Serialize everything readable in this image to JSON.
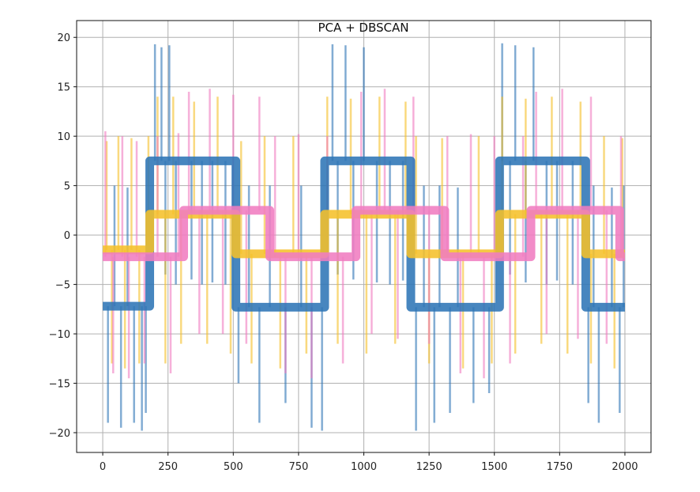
{
  "chart_data": {
    "type": "line",
    "title": "PCA + DBSCAN",
    "xlabel": "",
    "ylabel": "",
    "xlim": [
      -100,
      2100
    ],
    "ylim": [
      -22,
      21.7
    ],
    "xticks": [
      0,
      250,
      500,
      750,
      1000,
      1250,
      1500,
      1750,
      2000
    ],
    "yticks": [
      -20,
      -15,
      -10,
      -5,
      0,
      5,
      10,
      15,
      20
    ],
    "grid": true,
    "series": [
      {
        "color": "#2e75b6",
        "steps": [
          [
            0,
            -7.2
          ],
          [
            180,
            7.5
          ],
          [
            510,
            -7.3
          ],
          [
            850,
            7.5
          ],
          [
            1180,
            -7.3
          ],
          [
            1520,
            7.5
          ],
          [
            1850,
            -7.3
          ],
          [
            2000,
            -7.3
          ]
        ],
        "spikes": [
          [
            20,
            -19
          ],
          [
            45,
            5
          ],
          [
            70,
            -19.5
          ],
          [
            95,
            4.8
          ],
          [
            120,
            -19
          ],
          [
            150,
            -19.8
          ],
          [
            165,
            -18
          ],
          [
            200,
            19.3
          ],
          [
            225,
            19
          ],
          [
            240,
            -4
          ],
          [
            255,
            19.2
          ],
          [
            280,
            -5
          ],
          [
            340,
            -4.5
          ],
          [
            380,
            -5
          ],
          [
            420,
            -4.8
          ],
          [
            470,
            -5
          ],
          [
            520,
            -15
          ],
          [
            560,
            5
          ],
          [
            600,
            -19
          ],
          [
            640,
            5
          ],
          [
            700,
            -17
          ],
          [
            760,
            5
          ],
          [
            800,
            -19.5
          ],
          [
            840,
            -19.8
          ],
          [
            880,
            19.3
          ],
          [
            900,
            -4
          ],
          [
            930,
            19.2
          ],
          [
            960,
            -4.5
          ],
          [
            1000,
            19
          ],
          [
            1050,
            -4.8
          ],
          [
            1100,
            -5
          ],
          [
            1150,
            -4.6
          ],
          [
            1200,
            -19.8
          ],
          [
            1230,
            5
          ],
          [
            1270,
            -19
          ],
          [
            1290,
            5
          ],
          [
            1330,
            -18
          ],
          [
            1360,
            4.8
          ],
          [
            1420,
            -17
          ],
          [
            1480,
            -16
          ],
          [
            1530,
            19.4
          ],
          [
            1560,
            -4
          ],
          [
            1580,
            19.2
          ],
          [
            1620,
            -4.8
          ],
          [
            1650,
            19
          ],
          [
            1700,
            -5
          ],
          [
            1740,
            -4.6
          ],
          [
            1800,
            -5
          ],
          [
            1860,
            -17
          ],
          [
            1880,
            5
          ],
          [
            1900,
            -19
          ],
          [
            1950,
            4.8
          ],
          [
            1980,
            -18
          ],
          [
            1995,
            5
          ]
        ]
      },
      {
        "color": "#f5c02a",
        "steps": [
          [
            0,
            -1.5
          ],
          [
            180,
            2.1
          ],
          [
            510,
            -1.9
          ],
          [
            850,
            2.1
          ],
          [
            1180,
            -1.9
          ],
          [
            1520,
            2.1
          ],
          [
            1850,
            -1.9
          ],
          [
            2000,
            -1.9
          ]
        ],
        "spikes": [
          [
            15,
            9.5
          ],
          [
            35,
            -13
          ],
          [
            60,
            10
          ],
          [
            85,
            -13.5
          ],
          [
            110,
            9.8
          ],
          [
            140,
            -13
          ],
          [
            175,
            10
          ],
          [
            210,
            14
          ],
          [
            240,
            -13
          ],
          [
            270,
            14
          ],
          [
            300,
            -11
          ],
          [
            350,
            13.5
          ],
          [
            400,
            -11
          ],
          [
            440,
            14
          ],
          [
            490,
            -12
          ],
          [
            530,
            9.5
          ],
          [
            570,
            -13
          ],
          [
            620,
            10
          ],
          [
            680,
            -13.5
          ],
          [
            730,
            10
          ],
          [
            780,
            -12
          ],
          [
            860,
            14
          ],
          [
            900,
            -11
          ],
          [
            950,
            13.8
          ],
          [
            1010,
            -12
          ],
          [
            1060,
            14
          ],
          [
            1120,
            -11
          ],
          [
            1160,
            13.5
          ],
          [
            1200,
            10
          ],
          [
            1250,
            -13
          ],
          [
            1300,
            9.8
          ],
          [
            1380,
            -13.5
          ],
          [
            1440,
            10
          ],
          [
            1490,
            -13
          ],
          [
            1530,
            14
          ],
          [
            1580,
            -12
          ],
          [
            1620,
            13.8
          ],
          [
            1680,
            -11
          ],
          [
            1720,
            14
          ],
          [
            1780,
            -12
          ],
          [
            1830,
            13.5
          ],
          [
            1870,
            -13
          ],
          [
            1920,
            10
          ],
          [
            1960,
            -13.5
          ],
          [
            1990,
            9.8
          ]
        ]
      },
      {
        "color": "#f07cc0",
        "steps": [
          [
            0,
            -2.2
          ],
          [
            310,
            2.5
          ],
          [
            640,
            -2.2
          ],
          [
            970,
            2.5
          ],
          [
            1310,
            -2.2
          ],
          [
            1640,
            2.5
          ],
          [
            1980,
            -2.2
          ],
          [
            2000,
            -2.2
          ]
        ],
        "spikes": [
          [
            10,
            10.5
          ],
          [
            40,
            -14
          ],
          [
            75,
            10
          ],
          [
            100,
            -14.5
          ],
          [
            130,
            9.5
          ],
          [
            160,
            -13
          ],
          [
            210,
            10
          ],
          [
            260,
            -14
          ],
          [
            290,
            10.3
          ],
          [
            330,
            14.5
          ],
          [
            370,
            -10
          ],
          [
            410,
            14.8
          ],
          [
            460,
            -10
          ],
          [
            500,
            14.2
          ],
          [
            550,
            -11
          ],
          [
            600,
            14
          ],
          [
            660,
            10
          ],
          [
            700,
            -14
          ],
          [
            750,
            10.2
          ],
          [
            800,
            -14.5
          ],
          [
            860,
            10
          ],
          [
            920,
            -13
          ],
          [
            990,
            14.5
          ],
          [
            1030,
            -10
          ],
          [
            1080,
            14.8
          ],
          [
            1130,
            -10.5
          ],
          [
            1190,
            14
          ],
          [
            1250,
            -11
          ],
          [
            1320,
            10
          ],
          [
            1370,
            -14
          ],
          [
            1410,
            10.2
          ],
          [
            1460,
            -14.5
          ],
          [
            1500,
            10
          ],
          [
            1560,
            -13
          ],
          [
            1610,
            10
          ],
          [
            1660,
            14.5
          ],
          [
            1700,
            -10
          ],
          [
            1760,
            14.8
          ],
          [
            1820,
            -10.5
          ],
          [
            1870,
            14
          ],
          [
            1930,
            -11
          ],
          [
            1985,
            10
          ]
        ]
      }
    ]
  }
}
